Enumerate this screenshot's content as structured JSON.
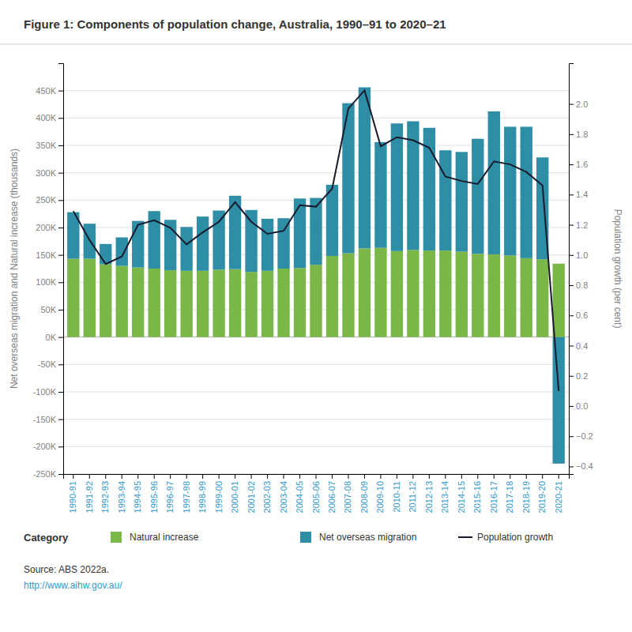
{
  "chart_data": {
    "type": "bar",
    "title": "Figure 1: Components of population change, Australia, 1990–91 to 2020–21",
    "ylabel": "Net overseas migration and Natural increase (thousands)",
    "y2label": "Population growth (per cent)",
    "legend_title": "Category",
    "annotations": [
      "Source: ABS 2022a.",
      "http://www.aihw.gov.au/"
    ],
    "stacked": true,
    "grid": true,
    "categories": [
      "1990-91",
      "1991-92",
      "1992-93",
      "1993-94",
      "1994-95",
      "1995-96",
      "1996-97",
      "1997-98",
      "1998-99",
      "1999-00",
      "2000-01",
      "2001-02",
      "2002-03",
      "2003-04",
      "2004-05",
      "2005-06",
      "2006-07",
      "2007-08",
      "2008-09",
      "2009-10",
      "2010-11",
      "2011-12",
      "2012-13",
      "2013-14",
      "2014-15",
      "2015-16",
      "2016-17",
      "2017-18",
      "2018-19",
      "2019-20",
      "2020-21"
    ],
    "series": [
      {
        "name": "Natural increase",
        "color": "#7ab648",
        "type": "bar",
        "values": [
          143,
          143,
          133,
          130,
          127,
          125,
          122,
          121,
          121,
          123,
          124,
          119,
          121,
          125,
          126,
          132,
          148,
          153,
          162,
          163,
          157,
          159,
          158,
          158,
          156,
          152,
          151,
          149,
          144,
          142,
          134
        ]
      },
      {
        "name": "Net overseas migration",
        "color": "#2e8ea6",
        "type": "bar",
        "values": [
          85,
          64,
          37,
          52,
          85,
          105,
          92,
          80,
          99,
          108,
          134,
          113,
          95,
          92,
          127,
          122,
          130,
          274,
          294,
          193,
          233,
          235,
          224,
          183,
          182,
          210,
          261,
          235,
          240,
          186,
          -231
        ]
      },
      {
        "name": "Population growth",
        "color": "#1a1a2e",
        "type": "line",
        "axis": "y2",
        "values": [
          1.29,
          1.1,
          0.94,
          0.99,
          1.2,
          1.23,
          1.18,
          1.07,
          1.15,
          1.22,
          1.35,
          1.22,
          1.14,
          1.16,
          1.33,
          1.32,
          1.44,
          1.97,
          2.09,
          1.72,
          1.78,
          1.76,
          1.71,
          1.52,
          1.49,
          1.47,
          1.62,
          1.6,
          1.55,
          1.46,
          0.1
        ]
      }
    ],
    "ylim": [
      -250,
      500
    ],
    "yticks": [
      {
        "value": -250,
        "label": "-250K"
      },
      {
        "value": -200,
        "label": "-200K"
      },
      {
        "value": -150,
        "label": "-150K"
      },
      {
        "value": -100,
        "label": "-100K"
      },
      {
        "value": -50,
        "label": "-50K"
      },
      {
        "value": 0,
        "label": "0K"
      },
      {
        "value": 50,
        "label": "50K"
      },
      {
        "value": 100,
        "label": "100K"
      },
      {
        "value": 150,
        "label": "150K"
      },
      {
        "value": 200,
        "label": "200K"
      },
      {
        "value": 250,
        "label": "250K"
      },
      {
        "value": 300,
        "label": "300K"
      },
      {
        "value": 350,
        "label": "350K"
      },
      {
        "value": 400,
        "label": "400K"
      },
      {
        "value": 450,
        "label": "450K"
      }
    ],
    "y2lim": [
      -0.45,
      2.27
    ],
    "y2ticks": [
      {
        "value": -0.4,
        "label": "−0.4"
      },
      {
        "value": -0.2,
        "label": "−0.2"
      },
      {
        "value": 0,
        "label": "0.0"
      },
      0.2,
      0.4,
      0.6,
      0.8,
      {
        "value": 1,
        "label": "1.0"
      },
      1.2,
      1.4,
      1.6,
      1.8,
      {
        "value": 2,
        "label": "2.0"
      }
    ]
  }
}
